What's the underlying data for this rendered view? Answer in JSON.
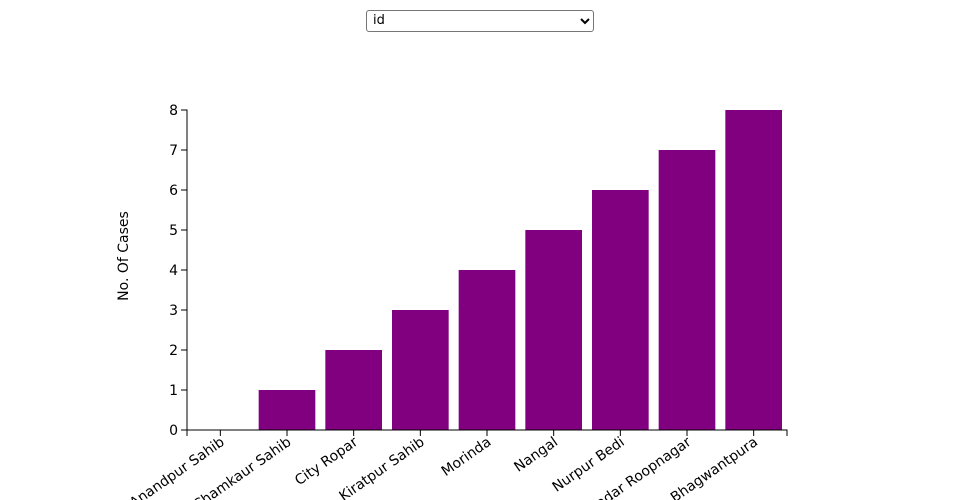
{
  "dropdown": {
    "selected": "id",
    "options": [
      "id"
    ]
  },
  "chart_data": {
    "type": "bar",
    "categories": [
      "Anandpur Sahib",
      "Chamkaur Sahib",
      "City Ropar",
      "Kiratpur Sahib",
      "Morinda",
      "Nangal",
      "Nurpur Bedi",
      "Sadar Roopnagar",
      "Bhagwantpura"
    ],
    "values": [
      0,
      1,
      2,
      3,
      4,
      5,
      6,
      7,
      8
    ],
    "xlabel": "",
    "ylabel": "No. Of Cases",
    "ylim": [
      0,
      8
    ],
    "yticks": [
      0,
      1,
      2,
      3,
      4,
      5,
      6,
      7,
      8
    ],
    "bar_color": "#800080",
    "grid": false,
    "legend": "none"
  }
}
